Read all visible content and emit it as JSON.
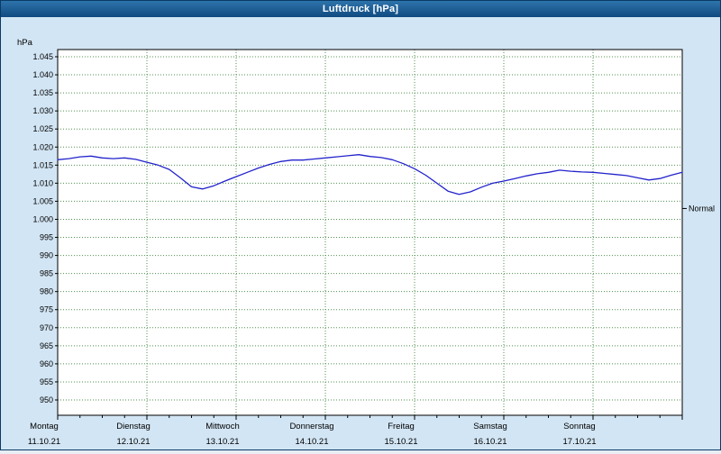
{
  "window": {
    "title": "Luftdruck [hPa]"
  },
  "colors": {
    "window_background": "#d2e5f4",
    "titlebar_top": "#2f74ac",
    "titlebar_bottom": "#0f4a80",
    "title_text": "#ffffff",
    "plot_background": "#ffffff",
    "plot_frame": "#000000",
    "grid": "#509050",
    "line": "#2222cc",
    "label_text": "#000000"
  },
  "chart_data": {
    "type": "line",
    "title": "Luftdruck [hPa]",
    "unit_label": "hPa",
    "ylim": [
      950,
      1045
    ],
    "ytick_step": 5,
    "ytick_labels": [
      "1.045",
      "1.040",
      "1.035",
      "1.030",
      "1.025",
      "1.020",
      "1.015",
      "1.010",
      "1.005",
      "1.000",
      "995",
      "990",
      "985",
      "980",
      "975",
      "970",
      "965",
      "960",
      "955",
      "950"
    ],
    "x_days": [
      {
        "name": "Montag",
        "date": "11.10.21"
      },
      {
        "name": "Dienstag",
        "date": "12.10.21"
      },
      {
        "name": "Mittwoch",
        "date": "13.10.21"
      },
      {
        "name": "Donnerstag",
        "date": "14.10.21"
      },
      {
        "name": "Freitag",
        "date": "15.10.21"
      },
      {
        "name": "Samstag",
        "date": "16.10.21"
      },
      {
        "name": "Sonntag",
        "date": "17.10.21"
      }
    ],
    "normal_marker": {
      "label": "Normal",
      "value_hpa": 1003
    },
    "grid": "dotted",
    "legend_position": "none",
    "series": [
      {
        "name": "Luftdruck",
        "color": "#2222cc",
        "points_day_hpa": [
          [
            0,
            1016.5
          ],
          [
            0.125,
            1016.8
          ],
          [
            0.25,
            1017.3
          ],
          [
            0.375,
            1017.5
          ],
          [
            0.5,
            1017.0
          ],
          [
            0.625,
            1016.8
          ],
          [
            0.75,
            1017.0
          ],
          [
            0.875,
            1016.6
          ],
          [
            1,
            1015.8
          ],
          [
            1.125,
            1015.0
          ],
          [
            1.25,
            1013.8
          ],
          [
            1.375,
            1011.5
          ],
          [
            1.5,
            1009.0
          ],
          [
            1.625,
            1008.4
          ],
          [
            1.75,
            1009.3
          ],
          [
            1.875,
            1010.6
          ],
          [
            2,
            1011.8
          ],
          [
            2.125,
            1013.0
          ],
          [
            2.25,
            1014.2
          ],
          [
            2.375,
            1015.2
          ],
          [
            2.5,
            1016.0
          ],
          [
            2.625,
            1016.4
          ],
          [
            2.75,
            1016.4
          ],
          [
            2.875,
            1016.7
          ],
          [
            3,
            1017.0
          ],
          [
            3.125,
            1017.3
          ],
          [
            3.25,
            1017.6
          ],
          [
            3.375,
            1017.9
          ],
          [
            3.5,
            1017.4
          ],
          [
            3.625,
            1017.1
          ],
          [
            3.75,
            1016.5
          ],
          [
            3.875,
            1015.4
          ],
          [
            4,
            1014.0
          ],
          [
            4.125,
            1012.2
          ],
          [
            4.25,
            1010.0
          ],
          [
            4.375,
            1007.8
          ],
          [
            4.5,
            1006.9
          ],
          [
            4.625,
            1007.6
          ],
          [
            4.75,
            1008.9
          ],
          [
            4.875,
            1010.0
          ],
          [
            5,
            1010.6
          ],
          [
            5.125,
            1011.3
          ],
          [
            5.25,
            1012.0
          ],
          [
            5.375,
            1012.6
          ],
          [
            5.5,
            1013.0
          ],
          [
            5.625,
            1013.6
          ],
          [
            5.75,
            1013.3
          ],
          [
            5.875,
            1013.1
          ],
          [
            6,
            1013.0
          ],
          [
            6.125,
            1012.7
          ],
          [
            6.25,
            1012.4
          ],
          [
            6.375,
            1012.1
          ],
          [
            6.5,
            1011.5
          ],
          [
            6.625,
            1010.9
          ],
          [
            6.75,
            1011.3
          ],
          [
            6.875,
            1012.2
          ],
          [
            7,
            1013.0
          ]
        ]
      }
    ]
  }
}
